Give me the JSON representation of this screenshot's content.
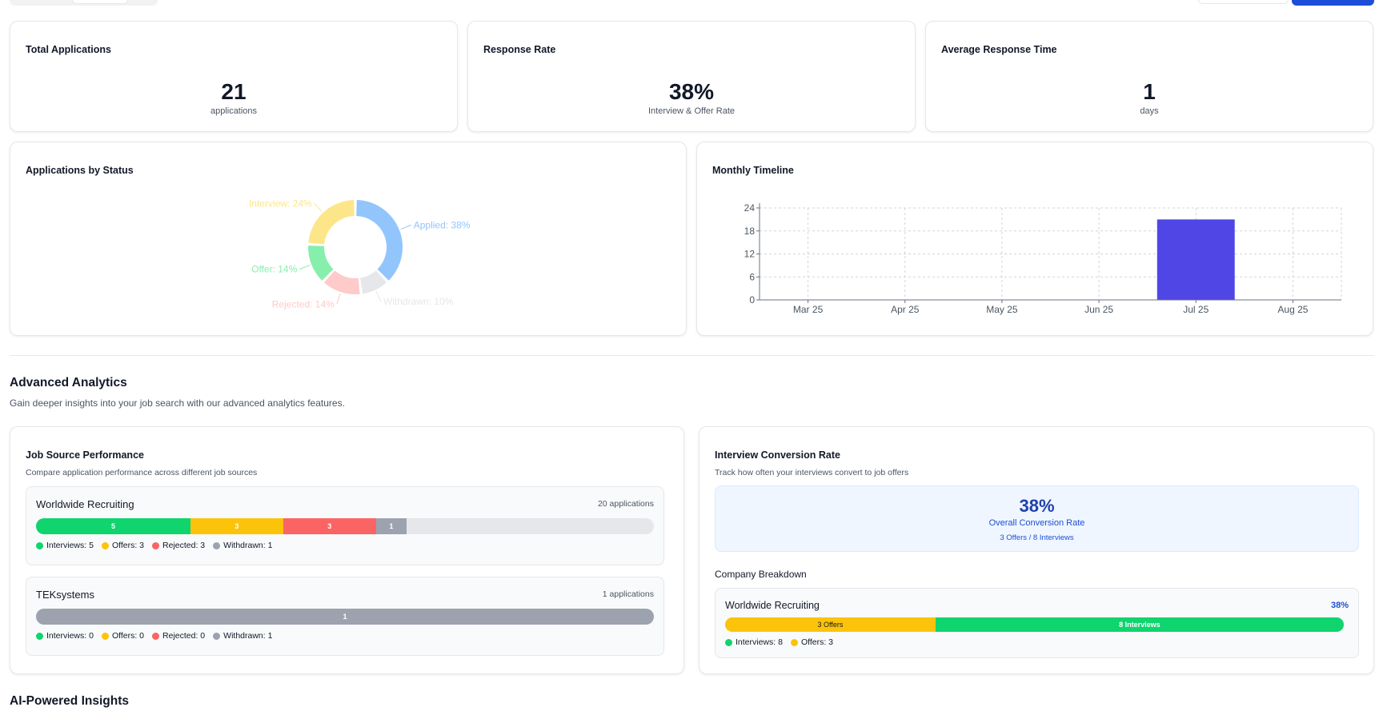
{
  "stats": [
    {
      "title": "Total Applications",
      "value": "21",
      "unit": "applications"
    },
    {
      "title": "Response Rate",
      "value": "38%",
      "unit": "Interview & Offer Rate"
    },
    {
      "title": "Average Response Time",
      "value": "1",
      "unit": "days"
    }
  ],
  "status_card": {
    "title": "Applications by Status"
  },
  "timeline_card": {
    "title": "Monthly Timeline"
  },
  "chart_data": [
    {
      "type": "pie",
      "variant": "donut",
      "slices": [
        {
          "label": "Applied: 38%",
          "value": 38,
          "color": "#93c5fd"
        },
        {
          "label": "Withdrawn: 10%",
          "value": 10,
          "color": "#e5e7eb"
        },
        {
          "label": "Rejected: 14%",
          "value": 14,
          "color": "#fecaca"
        },
        {
          "label": "Offer: 14%",
          "value": 14,
          "color": "#86efac"
        },
        {
          "label": "Interview: 24%",
          "value": 24,
          "color": "#fde68a"
        }
      ]
    },
    {
      "type": "bar",
      "categories": [
        "Mar 25",
        "Apr 25",
        "May 25",
        "Jun 25",
        "Jul 25",
        "Aug 25"
      ],
      "values": [
        0,
        0,
        0,
        0,
        21,
        0
      ],
      "yticks": [
        0,
        6,
        12,
        18,
        24
      ],
      "ylim": [
        0,
        24
      ],
      "grid": true,
      "color": "#4f46e5"
    }
  ],
  "advanced": {
    "title": "Advanced Analytics",
    "subtitle": "Gain deeper insights into your job search with our advanced analytics features."
  },
  "job_source": {
    "title": "Job Source Performance",
    "subtitle": "Compare application performance across different job sources",
    "sources": [
      {
        "name": "Worldwide Recruiting",
        "count": "20 applications",
        "segments": [
          {
            "label": "5",
            "share": 0.25,
            "color": "#10d46e"
          },
          {
            "label": "3",
            "share": 0.15,
            "color": "#fcc30b"
          },
          {
            "label": "3",
            "share": 0.15,
            "color": "#fb6464"
          },
          {
            "label": "1",
            "share": 0.05,
            "color": "#9ca3af"
          }
        ],
        "legend": [
          "Interviews: 5",
          "Offers: 3",
          "Rejected: 3",
          "Withdrawn: 1"
        ]
      },
      {
        "name": "TEKsystems",
        "count": "1 applications",
        "segments": [
          {
            "label": "1",
            "share": 1.0,
            "color": "#9ca3af"
          }
        ],
        "legend": [
          "Interviews: 0",
          "Offers: 0",
          "Rejected: 0",
          "Withdrawn: 1"
        ]
      }
    ],
    "legend_colors": [
      "#10d46e",
      "#fcc30b",
      "#fb6464",
      "#9ca3af"
    ]
  },
  "conversion": {
    "title": "Interview Conversion Rate",
    "subtitle": "Track how often your interviews convert to job offers",
    "rate": "38%",
    "rate_label": "Overall Conversion Rate",
    "detail": "3 Offers / 8 Interviews",
    "breakdown_title": "Company Breakdown",
    "company": {
      "name": "Worldwide Recruiting",
      "rate": "38%",
      "offers_label": "3 Offers",
      "offers_share": 0.34,
      "interviews_label": "8 Interviews",
      "legend": [
        "Interviews: 8",
        "Offers: 3"
      ]
    }
  },
  "ai": {
    "title": "AI-Powered Insights"
  }
}
